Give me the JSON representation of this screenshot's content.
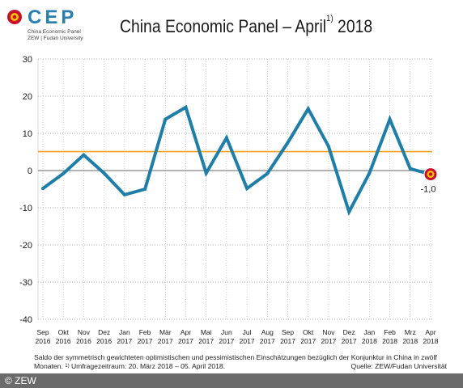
{
  "logo": {
    "text": "CEP",
    "sub_line1": "China Economic Panel",
    "sub_line2": "ZEW | Fudan University"
  },
  "title": {
    "text": "China Economic Panel – April",
    "footnote_mark": "1)",
    "year": "2018"
  },
  "colors": {
    "series": "#1f7ea8",
    "reference_line": "#f0a020",
    "zero_line": "#999999",
    "marker_outer": "#c8102e",
    "marker_inner": "#f5c400"
  },
  "chart_data": {
    "type": "line",
    "title": "China Economic Panel – April 2018",
    "categories": [
      [
        "Sep",
        "2016"
      ],
      [
        "Okt",
        "2016"
      ],
      [
        "Nov",
        "2016"
      ],
      [
        "Dez",
        "2016"
      ],
      [
        "Jan",
        "2017"
      ],
      [
        "Feb",
        "2017"
      ],
      [
        "Mär",
        "2017"
      ],
      [
        "Apr",
        "2017"
      ],
      [
        "Mai",
        "2017"
      ],
      [
        "Jun",
        "2017"
      ],
      [
        "Jul",
        "2017"
      ],
      [
        "Aug",
        "2017"
      ],
      [
        "Sep",
        "2017"
      ],
      [
        "Okt",
        "2017"
      ],
      [
        "Nov",
        "2017"
      ],
      [
        "Dez",
        "2017"
      ],
      [
        "Jan",
        "2018"
      ],
      [
        "Feb",
        "2018"
      ],
      [
        "Mrz",
        "2018"
      ],
      [
        "Apr",
        "2018"
      ]
    ],
    "series": [
      {
        "values": [
          -4.8,
          -0.8,
          4.2,
          -0.7,
          -6.5,
          -5.0,
          13.8,
          17.0,
          -0.7,
          8.8,
          -4.8,
          -0.8,
          7.5,
          16.6,
          6.5,
          -11.1,
          -0.7,
          13.8,
          0.5,
          -1.0
        ]
      }
    ],
    "reference_value": 5.1,
    "ylim": [
      -40,
      30
    ],
    "yticks": [
      30,
      20,
      10,
      0,
      -10,
      -20,
      -30,
      -40
    ],
    "grid": "horizontal-dotted",
    "last_label": "-1,0"
  },
  "footnote": {
    "line1": "Saldo der symmetrisch gewichteten optimistischen und pessimistischen Einschätzungen bezüglich der Konjunktur in China in zwölf",
    "line2_prefix": "Monaten.",
    "line2_mark": "1)",
    "line2_rest": "Umfragezeitraum: 20. März 2018 – 05. April 2018.",
    "source": "Quelle: ZEW/Fudan Universität"
  },
  "copyright": "© ZEW"
}
